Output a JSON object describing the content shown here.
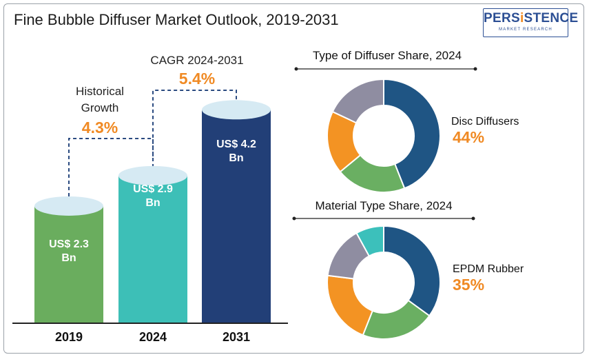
{
  "header": {
    "title": "Fine Bubble Diffuser Market Outlook, 2019-2031",
    "logo_brand_a": "PERS",
    "logo_brand_i": "i",
    "logo_brand_b": "STENCE",
    "logo_sub": "MARKET RESEARCH"
  },
  "growth": {
    "historical_label_line1": "Historical",
    "historical_label_line2": "Growth",
    "historical_value": "4.3%",
    "cagr_label": "CAGR 2024-2031",
    "cagr_value": "5.4%"
  },
  "chart_data": [
    {
      "type": "bar",
      "categories": [
        "2019",
        "2024",
        "2031"
      ],
      "values": [
        2.3,
        2.9,
        4.2
      ],
      "value_labels": [
        [
          "US$ 2.3",
          "Bn"
        ],
        [
          "US$ 2.9",
          "Bn"
        ],
        [
          "US$ 4.2",
          "Bn"
        ]
      ],
      "colors": [
        "#6aad5e",
        "#3dbfb7",
        "#223f77"
      ],
      "cap_color": "#d6eaf3",
      "title": "",
      "xlabel": "",
      "ylabel": ""
    },
    {
      "type": "pie",
      "title": "Type of Diffuser Share, 2024",
      "highlight_label": "Disc Diffusers",
      "highlight_value": "44%",
      "slices": [
        {
          "value": 44,
          "color": "#1f5584"
        },
        {
          "value": 20,
          "color": "#6aaf62"
        },
        {
          "value": 18,
          "color": "#f39323"
        },
        {
          "value": 18,
          "color": "#8f8da1"
        }
      ]
    },
    {
      "type": "pie",
      "title": "Material Type Share, 2024",
      "highlight_label": "EPDM Rubber",
      "highlight_value": "35%",
      "slices": [
        {
          "value": 35,
          "color": "#1f5584"
        },
        {
          "value": 21,
          "color": "#6aaf62"
        },
        {
          "value": 21,
          "color": "#f39323"
        },
        {
          "value": 15,
          "color": "#8f8da1"
        },
        {
          "value": 8,
          "color": "#3cc0bb"
        }
      ]
    }
  ]
}
